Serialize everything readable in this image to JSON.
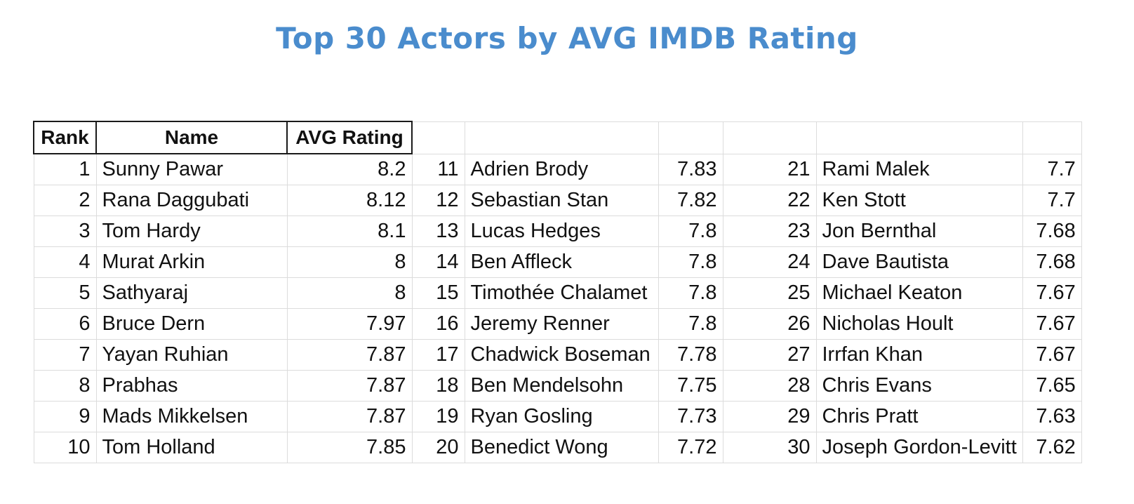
{
  "title": "Top 30 Actors by AVG IMDB Rating",
  "headers": [
    "Rank",
    "Name",
    "AVG Rating"
  ],
  "chart_data": {
    "type": "table",
    "title": "Top 30 Actors by AVG IMDB Rating",
    "columns": [
      "Rank",
      "Name",
      "AVG Rating"
    ],
    "rows": [
      {
        "rank": "1",
        "name": "Sunny Pawar",
        "rating": "8.2"
      },
      {
        "rank": "2",
        "name": "Rana Daggubati",
        "rating": "8.12"
      },
      {
        "rank": "3",
        "name": "Tom Hardy",
        "rating": "8.1"
      },
      {
        "rank": "4",
        "name": "Murat Arkin",
        "rating": "8"
      },
      {
        "rank": "5",
        "name": "Sathyaraj",
        "rating": "8"
      },
      {
        "rank": "6",
        "name": "Bruce Dern",
        "rating": "7.97"
      },
      {
        "rank": "7",
        "name": "Yayan Ruhian",
        "rating": "7.87"
      },
      {
        "rank": "8",
        "name": "Prabhas",
        "rating": "7.87"
      },
      {
        "rank": "9",
        "name": "Mads Mikkelsen",
        "rating": "7.87"
      },
      {
        "rank": "10",
        "name": "Tom Holland",
        "rating": "7.85"
      },
      {
        "rank": "11",
        "name": "Adrien Brody",
        "rating": "7.83"
      },
      {
        "rank": "12",
        "name": "Sebastian Stan",
        "rating": "7.82"
      },
      {
        "rank": "13",
        "name": "Lucas Hedges",
        "rating": "7.8"
      },
      {
        "rank": "14",
        "name": "Ben Affleck",
        "rating": "7.8"
      },
      {
        "rank": "15",
        "name": "Timothée Chalamet",
        "rating": "7.8"
      },
      {
        "rank": "16",
        "name": "Jeremy Renner",
        "rating": "7.8"
      },
      {
        "rank": "17",
        "name": "Chadwick Boseman",
        "rating": "7.78"
      },
      {
        "rank": "18",
        "name": "Ben Mendelsohn",
        "rating": "7.75"
      },
      {
        "rank": "19",
        "name": "Ryan Gosling",
        "rating": "7.73"
      },
      {
        "rank": "20",
        "name": "Benedict Wong",
        "rating": "7.72"
      },
      {
        "rank": "21",
        "name": "Rami Malek",
        "rating": "7.7"
      },
      {
        "rank": "22",
        "name": "Ken Stott",
        "rating": "7.7"
      },
      {
        "rank": "23",
        "name": "Jon Bernthal",
        "rating": "7.68"
      },
      {
        "rank": "24",
        "name": "Dave Bautista",
        "rating": "7.68"
      },
      {
        "rank": "25",
        "name": "Michael Keaton",
        "rating": "7.67"
      },
      {
        "rank": "26",
        "name": "Nicholas Hoult",
        "rating": "7.67"
      },
      {
        "rank": "27",
        "name": "Irrfan Khan",
        "rating": "7.67"
      },
      {
        "rank": "28",
        "name": "Chris Evans",
        "rating": "7.65"
      },
      {
        "rank": "29",
        "name": "Chris Pratt",
        "rating": "7.63"
      },
      {
        "rank": "30",
        "name": "Joseph Gordon-Levitt",
        "rating": "7.62"
      }
    ]
  }
}
